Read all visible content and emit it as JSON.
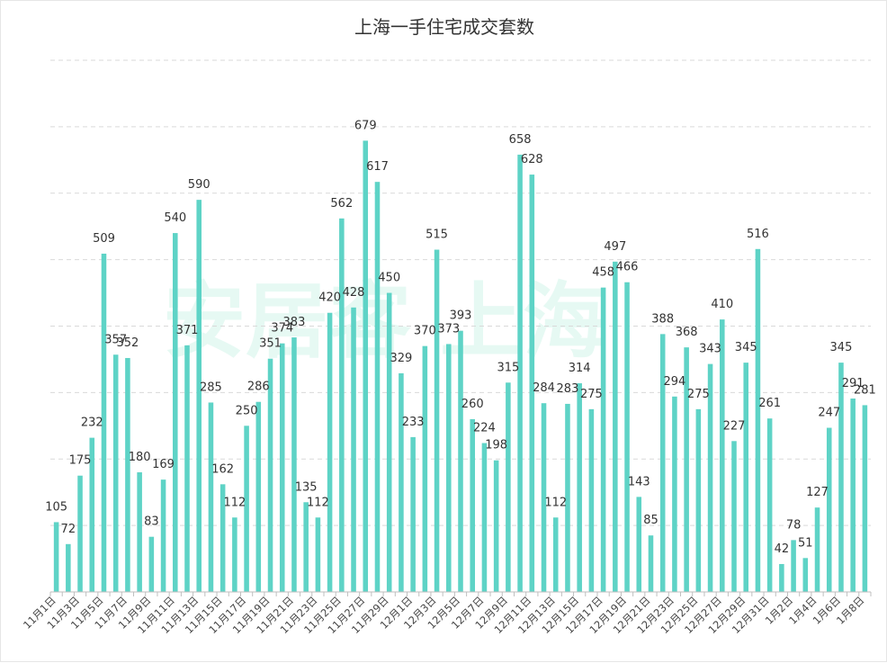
{
  "chart_data": {
    "type": "bar",
    "title": "上海一手住宅成交套数",
    "xlabel": "",
    "ylabel": "",
    "ylim": [
      0,
      800
    ],
    "grid": true,
    "bar_color": "#5ed3c6",
    "categories": [
      "11月1日",
      "11月2日",
      "11月3日",
      "11月4日",
      "11月5日",
      "11月6日",
      "11月7日",
      "11月8日",
      "11月9日",
      "11月10日",
      "11月11日",
      "11月12日",
      "11月13日",
      "11月14日",
      "11月15日",
      "11月16日",
      "11月17日",
      "11月18日",
      "11月19日",
      "11月20日",
      "11月21日",
      "11月22日",
      "11月23日",
      "11月24日",
      "11月25日",
      "11月26日",
      "11月27日",
      "11月28日",
      "11月29日",
      "11月30日",
      "12月1日",
      "12月2日",
      "12月3日",
      "12月4日",
      "12月5日",
      "12月6日",
      "12月7日",
      "12月8日",
      "12月9日",
      "12月10日",
      "12月11日",
      "12月12日",
      "12月13日",
      "12月14日",
      "12月15日",
      "12月16日",
      "12月17日",
      "12月18日",
      "12月19日",
      "12月20日",
      "12月21日",
      "12月22日",
      "12月23日",
      "12月24日",
      "12月25日",
      "12月26日",
      "12月27日",
      "12月28日",
      "12月29日",
      "12月30日",
      "12月31日",
      "1月1日",
      "1月2日",
      "1月3日",
      "1月4日",
      "1月5日",
      "1月6日",
      "1月7日",
      "1月8日"
    ],
    "values": [
      105,
      72,
      175,
      232,
      509,
      357,
      352,
      180,
      83,
      169,
      540,
      371,
      590,
      285,
      162,
      112,
      250,
      286,
      351,
      374,
      383,
      135,
      112,
      420,
      562,
      428,
      679,
      617,
      450,
      329,
      233,
      370,
      515,
      373,
      393,
      260,
      224,
      198,
      315,
      658,
      628,
      284,
      112,
      283,
      314,
      275,
      458,
      497,
      466,
      143,
      85,
      388,
      294,
      368,
      275,
      343,
      410,
      227,
      345,
      516,
      261,
      42,
      78,
      51,
      127,
      247,
      345,
      291,
      281
    ],
    "tick_labels": [
      "11月1日",
      "11月3日",
      "11月5日",
      "11月7日",
      "11月9日",
      "11月11日",
      "11月13日",
      "11月15日",
      "11月17日",
      "11月19日",
      "11月21日",
      "11月23日",
      "11月25日",
      "11月27日",
      "11月29日",
      "12月1日",
      "12月3日",
      "12月5日",
      "12月7日",
      "12月9日",
      "12月11日",
      "12月13日",
      "12月15日",
      "12月17日",
      "12月19日",
      "12月21日",
      "12月23日",
      "12月25日",
      "12月27日",
      "12月29日",
      "12月31日",
      "1月2日",
      "1月4日",
      "1月6日",
      "1月8日"
    ],
    "watermark": "安居客 上海"
  }
}
